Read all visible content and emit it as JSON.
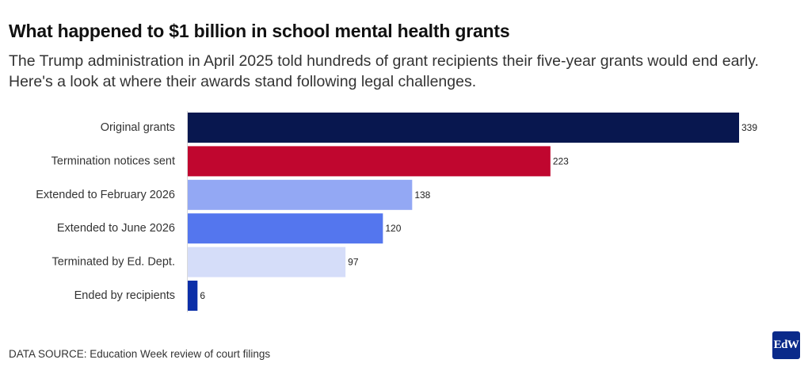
{
  "header": {
    "title": "What happened to $1 billion in school mental health grants",
    "subtitle": "The Trump administration in April 2025 told hundreds of grant recipients their five-year grants would end early. Here's a look at where their awards stand following legal challenges."
  },
  "footer": {
    "source": "DATA SOURCE: Education Week review of court filings",
    "logo": "EdW"
  },
  "chart_data": {
    "type": "bar",
    "orientation": "horizontal",
    "title": "What happened to $1 billion in school mental health grants",
    "xlabel": "",
    "ylabel": "",
    "xlim": [
      0,
      339
    ],
    "grid": false,
    "categories": [
      "Original grants",
      "Termination notices sent",
      "Extended to February 2026",
      "Extended to June 2026",
      "Terminated by Ed. Dept.",
      "Ended by recipients"
    ],
    "values": [
      339,
      223,
      138,
      120,
      97,
      6
    ],
    "colors": [
      "#08174f",
      "#c0062f",
      "#93a8f4",
      "#5476ee",
      "#d5ddf9",
      "#0c2fa8"
    ]
  }
}
